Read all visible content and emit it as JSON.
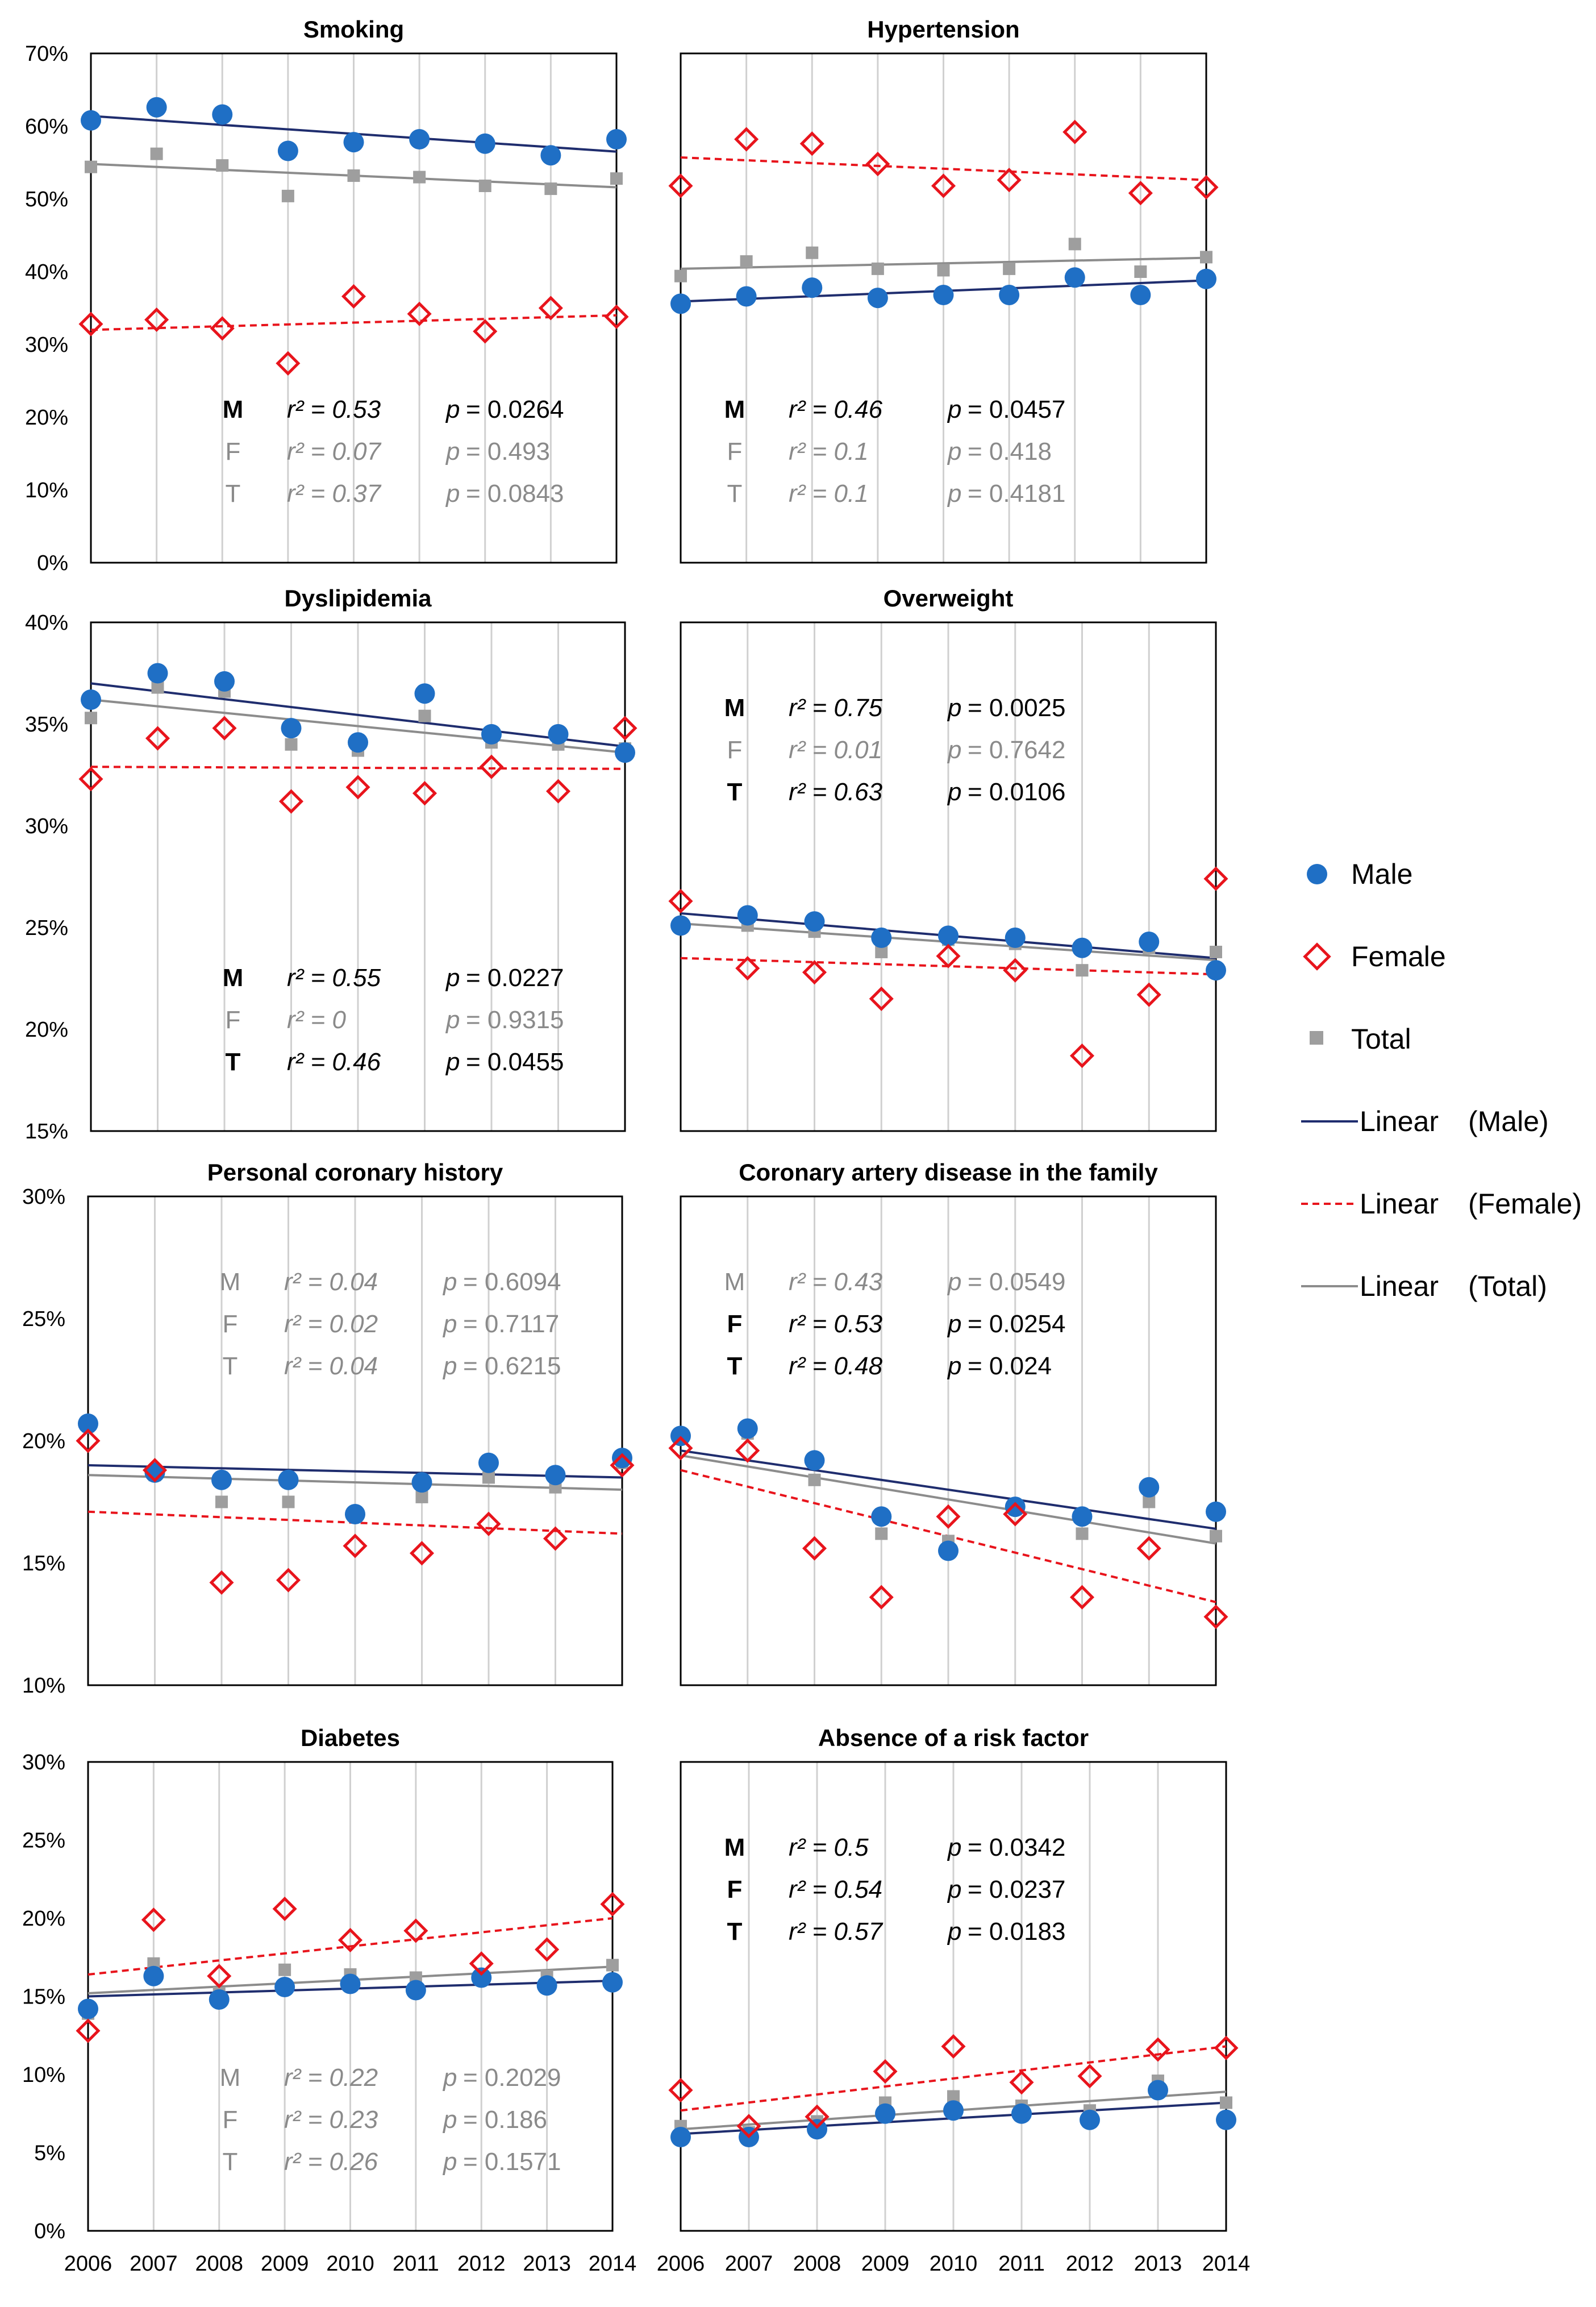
{
  "years": [
    "2006",
    "2007",
    "2008",
    "2009",
    "2010",
    "2011",
    "2012",
    "2013",
    "2014"
  ],
  "legend": {
    "male": "Male",
    "female": "Female",
    "total": "Total",
    "linear_male": "Linear",
    "linear_male_series": "(Male)",
    "linear_female": "Linear",
    "linear_female_series": "(Female)",
    "linear_total": "Linear",
    "linear_total_series": "(Total)"
  },
  "colors": {
    "male": "#1f6fc5",
    "male_trend": "#1f2d6e",
    "female": "#e8141c",
    "total": "#9e9e9e",
    "total_trend": "#8c8c8c",
    "grid": "#d0d0d0",
    "stat_grey": "#8a8a8a",
    "stat_black": "#000000"
  },
  "chart_data": [
    {
      "type": "scatter",
      "title": "Smoking",
      "ylim": [
        0,
        70
      ],
      "yticks": [
        0,
        10,
        20,
        30,
        40,
        50,
        60,
        70
      ],
      "yunit": "%",
      "series": [
        {
          "name": "Male",
          "values": [
            60.8,
            62.6,
            61.6,
            56.6,
            57.8,
            58.2,
            57.6,
            56.0,
            58.2
          ],
          "trend": [
            61.4,
            56.5
          ]
        },
        {
          "name": "Female",
          "values": [
            32.8,
            33.4,
            32.2,
            27.4,
            36.6,
            34.2,
            31.8,
            35.0,
            33.8
          ],
          "trend": [
            32.0,
            34.0
          ]
        },
        {
          "name": "Total",
          "values": [
            54.4,
            56.2,
            54.6,
            50.4,
            53.2,
            53.0,
            51.8,
            51.4,
            52.8
          ],
          "trend": [
            54.8,
            51.6
          ]
        }
      ],
      "stats": [
        {
          "label": "M",
          "r2": "r² = 0.53",
          "p_sym": "p",
          "p_val": "= 0.0264",
          "sig": true
        },
        {
          "label": "F",
          "r2": "r² = 0.07",
          "p_sym": "p",
          "p_val": "= 0.493",
          "sig": false
        },
        {
          "label": "T",
          "r2": "r² = 0.37",
          "p_sym": "p",
          "p_val": "= 0.0843",
          "sig": false
        }
      ],
      "stats_top": false
    },
    {
      "type": "scatter",
      "title": "Hypertension",
      "ylim": [
        0,
        70
      ],
      "yticks": [],
      "yunit": "%",
      "series": [
        {
          "name": "Male",
          "values": [
            35.6,
            36.6,
            37.8,
            36.4,
            36.8,
            36.8,
            39.2,
            36.8,
            39.0
          ],
          "trend": [
            35.9,
            38.8
          ]
        },
        {
          "name": "Female",
          "values": [
            51.8,
            58.2,
            57.6,
            54.8,
            51.8,
            52.6,
            59.2,
            50.8,
            51.6
          ],
          "trend": [
            55.7,
            52.6
          ]
        },
        {
          "name": "Total",
          "values": [
            39.4,
            41.4,
            42.6,
            40.4,
            40.2,
            40.4,
            43.8,
            40.0,
            42.0
          ],
          "trend": [
            40.4,
            41.9
          ]
        }
      ],
      "stats": [
        {
          "label": "M",
          "r2": "r² = 0.46",
          "p_sym": "p",
          "p_val": "= 0.0457",
          "sig": true
        },
        {
          "label": "F",
          "r2": "r² = 0.1",
          "p_sym": "p",
          "p_val": "= 0.418",
          "sig": false
        },
        {
          "label": "T",
          "r2": "r² = 0.1",
          "p_sym": "p",
          "p_val": "= 0.4181",
          "sig": false
        }
      ],
      "stats_top": false
    },
    {
      "type": "scatter",
      "title": "Dyslipidemia",
      "ylim": [
        15,
        40
      ],
      "yticks": [
        15,
        20,
        25,
        30,
        35,
        40
      ],
      "yunit": "%",
      "series": [
        {
          "name": "Male",
          "values": [
            36.2,
            37.5,
            37.1,
            34.8,
            34.1,
            36.5,
            34.5,
            34.5,
            33.6
          ],
          "trend": [
            37.0,
            33.9
          ]
        },
        {
          "name": "Female",
          "values": [
            32.3,
            34.3,
            34.8,
            31.2,
            31.9,
            31.6,
            32.9,
            31.7,
            34.8
          ],
          "trend": [
            32.9,
            32.8
          ]
        },
        {
          "name": "Total",
          "values": [
            35.3,
            36.8,
            36.6,
            34.0,
            33.7,
            35.4,
            34.1,
            34.0,
            33.8
          ],
          "trend": [
            36.2,
            33.6
          ]
        }
      ],
      "stats": [
        {
          "label": "M",
          "r2": "r² = 0.55",
          "p_sym": "p",
          "p_val": "= 0.0227",
          "sig": true
        },
        {
          "label": "F",
          "r2": "r² = 0",
          "p_sym": "p",
          "p_val": "= 0.9315",
          "sig": false
        },
        {
          "label": "T",
          "r2": "r² = 0.46",
          "p_sym": "p",
          "p_val": "= 0.0455",
          "sig": true
        }
      ],
      "stats_top": false
    },
    {
      "type": "scatter",
      "title": "Overweight",
      "ylim": [
        15,
        40
      ],
      "yticks": [],
      "yunit": "%",
      "series": [
        {
          "name": "Male",
          "values": [
            25.1,
            25.6,
            25.3,
            24.5,
            24.6,
            24.5,
            24.0,
            24.3,
            22.9
          ],
          "trend": [
            25.7,
            23.5
          ]
        },
        {
          "name": "Female",
          "values": [
            26.3,
            23.0,
            22.8,
            21.5,
            23.6,
            22.9,
            18.7,
            21.7,
            27.4
          ],
          "trend": [
            23.5,
            22.7
          ]
        },
        {
          "name": "Total",
          "values": [
            25.2,
            25.1,
            24.8,
            23.8,
            24.4,
            24.2,
            22.9,
            24.0,
            23.8
          ],
          "trend": [
            25.2,
            23.4
          ]
        }
      ],
      "stats": [
        {
          "label": "M",
          "r2": "r² = 0.75",
          "p_sym": "p",
          "p_val": "= 0.0025",
          "sig": true
        },
        {
          "label": "F",
          "r2": "r² = 0.01",
          "p_sym": "p",
          "p_val": "= 0.7642",
          "sig": false
        },
        {
          "label": "T",
          "r2": "r² = 0.63",
          "p_sym": "p",
          "p_val": "= 0.0106",
          "sig": true
        }
      ],
      "stats_top": true
    },
    {
      "type": "scatter",
      "title": "Personal coronary history",
      "ylim": [
        10,
        30
      ],
      "yticks": [
        10,
        15,
        20,
        25,
        30
      ],
      "yunit": "%",
      "series": [
        {
          "name": "Male",
          "values": [
            20.7,
            18.7,
            18.4,
            18.4,
            17.0,
            18.3,
            19.1,
            18.6,
            19.3
          ],
          "trend": [
            19.0,
            18.5
          ]
        },
        {
          "name": "Female",
          "values": [
            20.0,
            18.8,
            14.2,
            14.3,
            15.7,
            15.4,
            16.6,
            16.0,
            19.0
          ],
          "trend": [
            17.1,
            16.2
          ]
        },
        {
          "name": "Total",
          "values": [
            20.6,
            18.6,
            17.5,
            17.5,
            16.9,
            17.7,
            18.5,
            18.1,
            19.1
          ],
          "trend": [
            18.6,
            18.0
          ]
        }
      ],
      "stats": [
        {
          "label": "M",
          "r2": "r² = 0.04",
          "p_sym": "p",
          "p_val": "= 0.6094",
          "sig": false
        },
        {
          "label": "F",
          "r2": "r² = 0.02",
          "p_sym": "p",
          "p_val": "= 0.7117",
          "sig": false
        },
        {
          "label": "T",
          "r2": "r² = 0.04",
          "p_sym": "p",
          "p_val": "= 0.6215",
          "sig": false
        }
      ],
      "stats_top": true
    },
    {
      "type": "scatter",
      "title": "Coronary artery disease in the family",
      "ylim": [
        10,
        30
      ],
      "yticks": [],
      "yunit": "%",
      "series": [
        {
          "name": "Male",
          "values": [
            20.2,
            20.5,
            19.2,
            16.9,
            15.5,
            17.3,
            16.9,
            18.1,
            17.1
          ],
          "trend": [
            19.6,
            16.4
          ]
        },
        {
          "name": "Female",
          "values": [
            19.7,
            19.6,
            15.6,
            13.6,
            16.9,
            17.0,
            13.6,
            15.6,
            12.8
          ],
          "trend": [
            18.8,
            13.4
          ]
        },
        {
          "name": "Total",
          "values": [
            20.1,
            20.3,
            18.4,
            16.2,
            15.9,
            17.2,
            16.2,
            17.5,
            16.1
          ],
          "trend": [
            19.4,
            15.8
          ]
        }
      ],
      "stats": [
        {
          "label": "M",
          "r2": "r² = 0.43",
          "p_sym": "p",
          "p_val": "= 0.0549",
          "sig": false
        },
        {
          "label": "F",
          "r2": "r² = 0.53",
          "p_sym": "p",
          "p_val": "= 0.0254",
          "sig": true
        },
        {
          "label": "T",
          "r2": "r² = 0.48",
          "p_sym": "p",
          "p_val": "= 0.024",
          "sig": true
        }
      ],
      "stats_top": true
    },
    {
      "type": "scatter",
      "title": "Diabetes",
      "ylim": [
        0,
        30
      ],
      "yticks": [
        0,
        5,
        10,
        15,
        20,
        25,
        30
      ],
      "yunit": "%",
      "series": [
        {
          "name": "Male",
          "values": [
            14.2,
            16.3,
            14.8,
            15.6,
            15.8,
            15.4,
            16.2,
            15.7,
            15.9
          ],
          "trend": [
            15.0,
            16.0
          ]
        },
        {
          "name": "Female",
          "values": [
            12.8,
            19.9,
            16.3,
            20.6,
            18.6,
            19.2,
            17.1,
            18.0,
            20.9
          ],
          "trend": [
            16.4,
            20.0
          ]
        },
        {
          "name": "Total",
          "values": [
            13.9,
            17.1,
            15.2,
            16.7,
            16.4,
            16.2,
            16.4,
            16.3,
            17.0
          ],
          "trend": [
            15.2,
            16.9
          ]
        }
      ],
      "stats": [
        {
          "label": "M",
          "r2": "r² = 0.22",
          "p_sym": "p",
          "p_val": "= 0.2029",
          "sig": false
        },
        {
          "label": "F",
          "r2": "r² = 0.23",
          "p_sym": "p",
          "p_val": "= 0.186",
          "sig": false
        },
        {
          "label": "T",
          "r2": "r² = 0.26",
          "p_sym": "p",
          "p_val": "= 0.1571",
          "sig": false
        }
      ],
      "stats_top": false
    },
    {
      "type": "scatter",
      "title": "Absence of a risk factor",
      "ylim": [
        0,
        30
      ],
      "yticks": [],
      "yunit": "%",
      "series": [
        {
          "name": "Male",
          "values": [
            6.0,
            6.0,
            6.5,
            7.5,
            7.7,
            7.5,
            7.1,
            9.0,
            7.1
          ],
          "trend": [
            6.2,
            8.2
          ]
        },
        {
          "name": "Female",
          "values": [
            9.0,
            6.7,
            7.3,
            10.2,
            11.8,
            9.5,
            9.9,
            11.6,
            11.7
          ],
          "trend": [
            7.7,
            11.8
          ]
        },
        {
          "name": "Total",
          "values": [
            6.7,
            6.3,
            7.0,
            8.2,
            8.6,
            8.0,
            7.7,
            9.6,
            8.2
          ],
          "trend": [
            6.5,
            8.9
          ]
        }
      ],
      "stats": [
        {
          "label": "M",
          "r2": "r² = 0.5",
          "p_sym": "p",
          "p_val": "= 0.0342",
          "sig": true
        },
        {
          "label": "F",
          "r2": "r² = 0.54",
          "p_sym": "p",
          "p_val": "= 0.0237",
          "sig": true
        },
        {
          "label": "T",
          "r2": "r² = 0.57",
          "p_sym": "p",
          "p_val": "= 0.0183",
          "sig": true
        }
      ],
      "stats_top": true
    }
  ]
}
